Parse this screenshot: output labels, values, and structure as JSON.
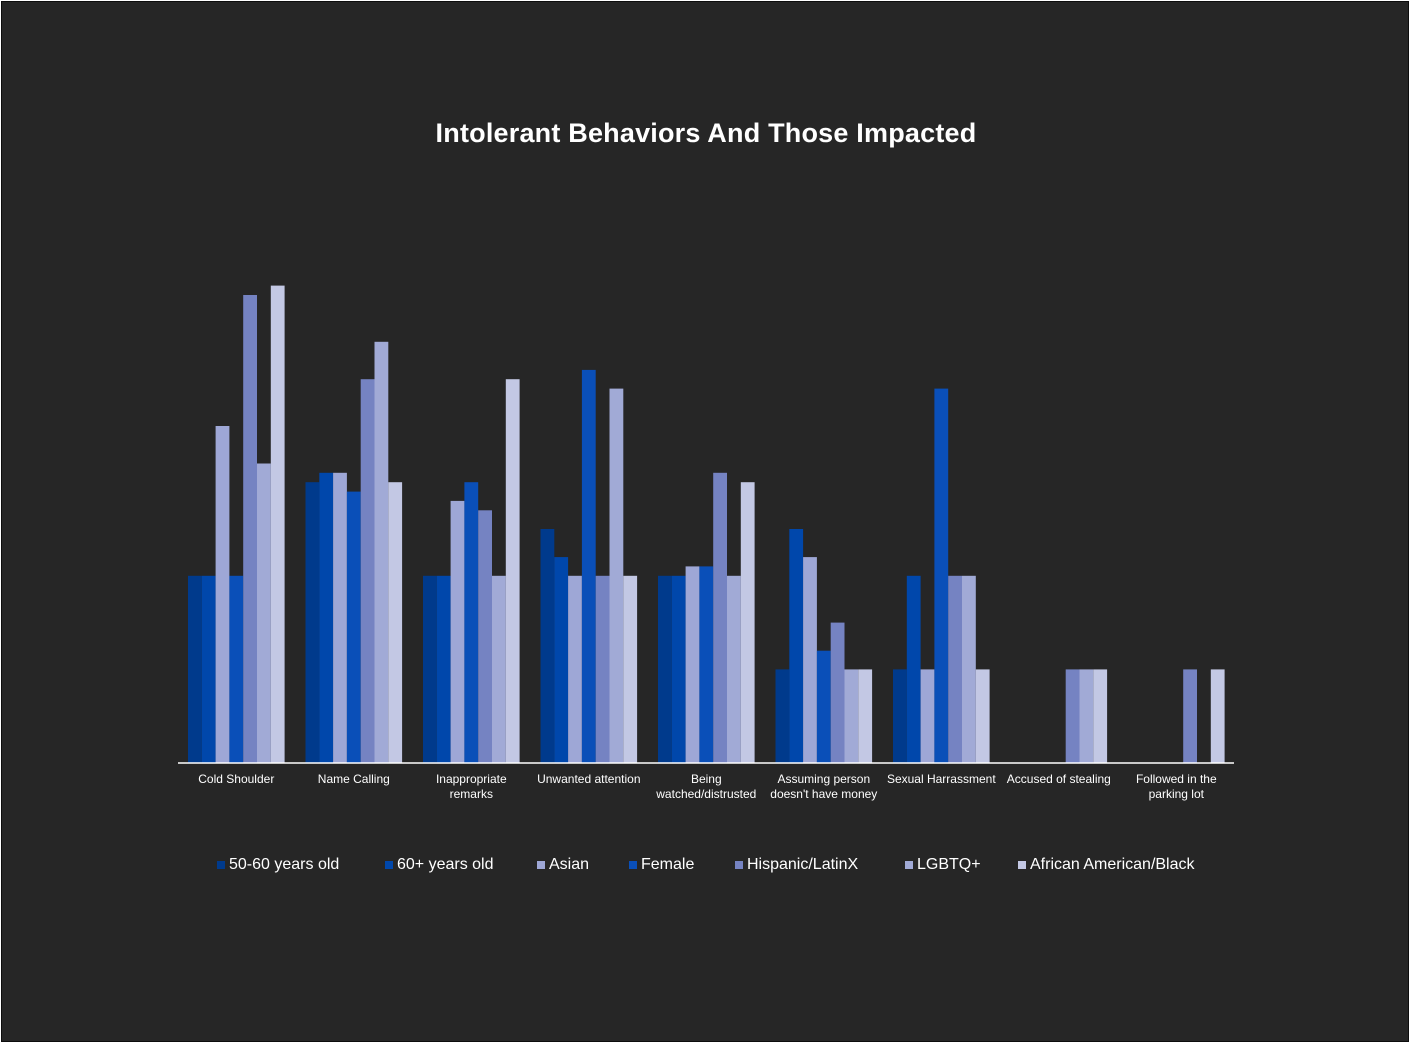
{
  "chart_data": {
    "type": "bar",
    "title": "Intolerant Behaviors And Those Impacted",
    "xlabel": "",
    "ylabel": "",
    "ylim": [
      0,
      10
    ],
    "grid": false,
    "legend_position": "bottom",
    "categories": [
      [
        "Cold Shoulder"
      ],
      [
        "Name Calling"
      ],
      [
        "Inappropriate",
        "remarks"
      ],
      [
        "Unwanted attention"
      ],
      [
        "Being",
        "watched/distrusted"
      ],
      [
        "Assuming person",
        "doesn't have money"
      ],
      [
        "Sexual Harrassment"
      ],
      [
        "Accused of stealing"
      ],
      [
        "Followed in the",
        "parking lot"
      ]
    ],
    "series": [
      {
        "name": "50-60 years old",
        "color": "#003a8c",
        "values": [
          4,
          6,
          4,
          5,
          4,
          2,
          2,
          0,
          0
        ]
      },
      {
        "name": "60+ years old",
        "color": "#0047ab",
        "values": [
          4,
          6.2,
          4,
          4.4,
          4,
          5,
          4,
          0,
          0
        ]
      },
      {
        "name": "Asian",
        "color": "#9ea7d6",
        "values": [
          7.2,
          6.2,
          5.6,
          4,
          4.2,
          4.4,
          2,
          0,
          0
        ]
      },
      {
        "name": "Female",
        "color": "#0a4fb8",
        "values": [
          4,
          5.8,
          6,
          8.4,
          4.2,
          2.4,
          8,
          0,
          0
        ]
      },
      {
        "name": "Hispanic/LatinX",
        "color": "#7583c2",
        "values": [
          10,
          8.2,
          5.4,
          4,
          6.2,
          3,
          4,
          2,
          2
        ]
      },
      {
        "name": "LGBTQ+",
        "color": "#a1aad6",
        "values": [
          6.4,
          9,
          4,
          8,
          4,
          2,
          4,
          2,
          0
        ]
      },
      {
        "name": "African American/Black",
        "color": "#c3c8e4",
        "values": [
          10.2,
          6,
          8.2,
          4,
          6,
          2,
          2,
          2,
          2
        ]
      }
    ]
  }
}
